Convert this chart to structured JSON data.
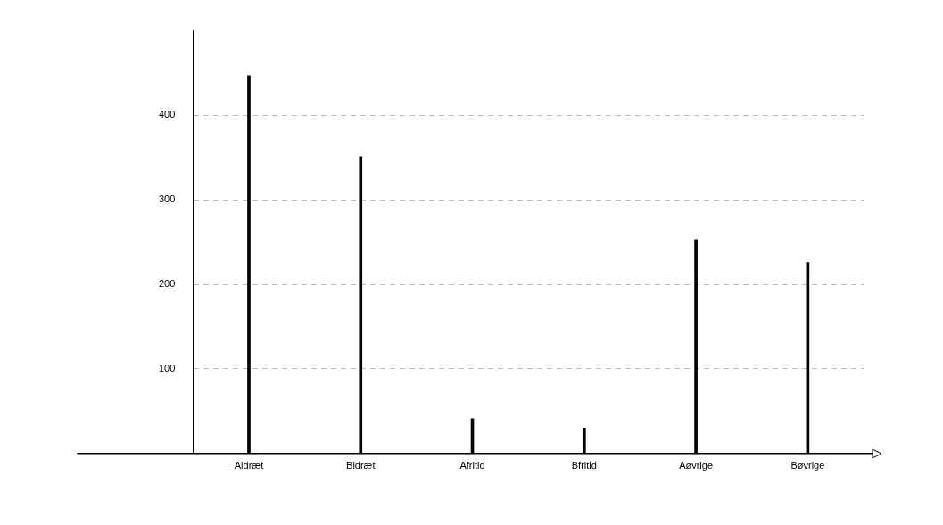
{
  "chart_data": {
    "type": "bar",
    "categories": [
      "Aidræt",
      "Bidræt",
      "Afritid",
      "Bfritid",
      "Aøvrige",
      "Bøvrige"
    ],
    "values": [
      447,
      351,
      41,
      30,
      253,
      226
    ],
    "color": "#000000",
    "ylim": [
      0,
      500
    ],
    "yticks": [
      100,
      200,
      300,
      400
    ],
    "grid": "y",
    "legend": false
  }
}
